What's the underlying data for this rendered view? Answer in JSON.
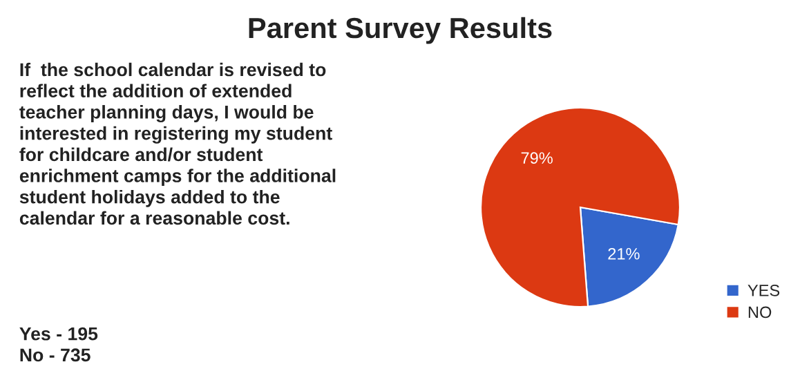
{
  "chart_data": {
    "type": "pie",
    "title": "Parent Survey Results",
    "categories": [
      "YES",
      "NO"
    ],
    "values": [
      21,
      79
    ],
    "colors": [
      "#3366cc",
      "#dc3912"
    ],
    "value_labels": [
      "21%",
      "79%"
    ],
    "legend": "right",
    "annotations": [
      "If  the school calendar is revised to\nreflect the addition of extended\nteacher planning days, I would be\ninterested in registering my student\nfor childcare and/or student\nenrichment camps for the additional\nstudent holidays added to the\ncalendar for a reasonable cost.",
      "Yes - 195\nNo - 735"
    ]
  }
}
